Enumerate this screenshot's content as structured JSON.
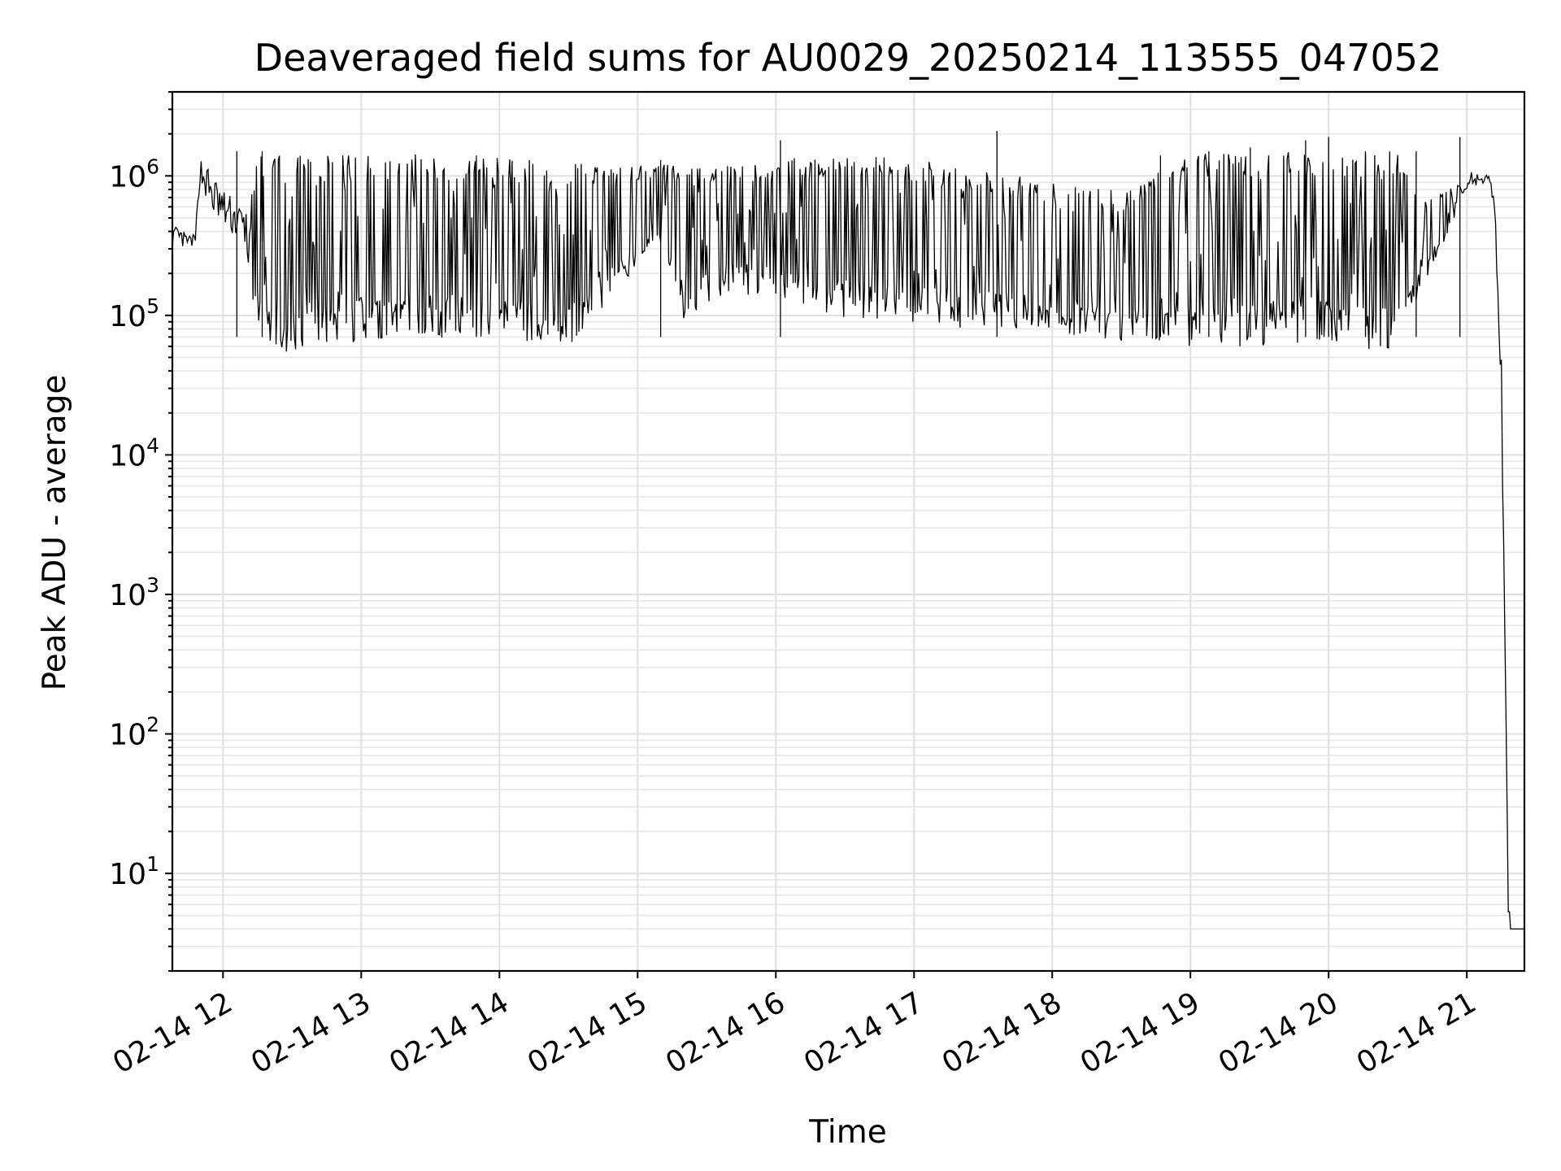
{
  "chart_data": {
    "type": "line",
    "title": "Deaveraged field sums for AU0029_20250214_113555_047052",
    "xlabel": "Time",
    "ylabel": "Peak ADU - average",
    "yscale": "log",
    "xlim": [
      "2025-02-14 11:38",
      "2025-02-14 21:25"
    ],
    "ylim": [
      2,
      4000000
    ],
    "x_ticks": [
      "02-14 12",
      "02-14 13",
      "02-14 14",
      "02-14 15",
      "02-14 16",
      "02-14 17",
      "02-14 18",
      "02-14 19",
      "02-14 20",
      "02-14 21"
    ],
    "y_ticks": [
      {
        "base": "10",
        "exp": "1",
        "value": 10
      },
      {
        "base": "10",
        "exp": "2",
        "value": 100
      },
      {
        "base": "10",
        "exp": "3",
        "value": 1000
      },
      {
        "base": "10",
        "exp": "4",
        "value": 10000
      },
      {
        "base": "10",
        "exp": "5",
        "value": 100000
      },
      {
        "base": "10",
        "exp": "6",
        "value": 1000000
      }
    ],
    "grid": "major and minor",
    "legend": "none",
    "series": [
      {
        "color": "#000000",
        "style": "noisy envelope",
        "x": [
          "11:38",
          "11:45",
          "11:48",
          "11:50",
          "11:55",
          "12:00",
          "12:10",
          "12:15",
          "12:20",
          "12:30",
          "12:40",
          "13:00",
          "13:30",
          "14:00",
          "14:30",
          "15:00",
          "15:10",
          "15:20",
          "15:40",
          "16:00",
          "16:20",
          "16:40",
          "17:00",
          "17:30",
          "18:00",
          "18:30",
          "19:00",
          "19:30",
          "20:00",
          "20:20",
          "20:30",
          "20:40",
          "20:55",
          "21:00",
          "21:10",
          "21:12",
          "21:15",
          "21:17",
          "21:18",
          "21:19",
          "21:20",
          "21:25"
        ],
        "upper": [
          450000,
          380000,
          380000,
          1400000,
          1100000,
          800000,
          600000,
          1400000,
          1400000,
          1450000,
          1450000,
          1450000,
          1450000,
          1350000,
          1250000,
          1200000,
          1200000,
          1200000,
          1200000,
          1300000,
          1400000,
          1400000,
          1350000,
          1100000,
          900000,
          800000,
          1500000,
          1500000,
          1500000,
          1500000,
          1500000,
          700000,
          900000,
          1100000,
          1000000,
          700000,
          50000,
          200,
          10,
          4,
          4,
          4
        ],
        "lower": [
          300000,
          300000,
          320000,
          900000,
          500000,
          420000,
          300000,
          60000,
          45000,
          55000,
          60000,
          65000,
          70000,
          65000,
          60000,
          200000,
          300000,
          90000,
          150000,
          120000,
          100000,
          90000,
          85000,
          80000,
          75000,
          65000,
          60000,
          60000,
          55000,
          55000,
          60000,
          150000,
          500000,
          800000,
          900000,
          500000,
          20000,
          100,
          5,
          4,
          4,
          4
        ]
      }
    ],
    "spikes": [
      {
        "x": "12:06",
        "value": 1500000
      },
      {
        "x": "12:17",
        "value": 1500000
      },
      {
        "x": "13:50",
        "value": 1400000
      },
      {
        "x": "15:10",
        "value": 1300000
      },
      {
        "x": "16:02",
        "value": 1800000
      },
      {
        "x": "17:36",
        "value": 2100000
      },
      {
        "x": "18:47",
        "value": 1400000
      },
      {
        "x": "19:08",
        "value": 1500000
      },
      {
        "x": "19:26",
        "value": 1600000
      },
      {
        "x": "19:50",
        "value": 1800000
      },
      {
        "x": "20:00",
        "value": 1900000
      },
      {
        "x": "20:16",
        "value": 1500000
      },
      {
        "x": "20:38",
        "value": 1500000
      },
      {
        "x": "20:57",
        "value": 1900000
      }
    ]
  }
}
